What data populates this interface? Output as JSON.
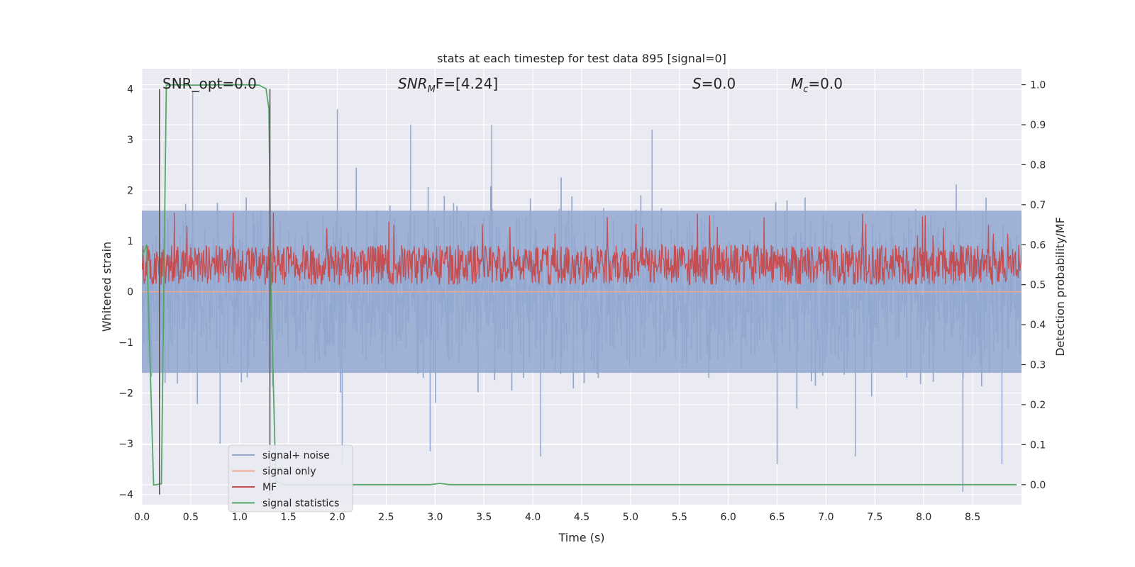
{
  "chart_data": {
    "type": "line",
    "title": "stats at each timestep for test data 895 [signal=0]",
    "xlabel": "Time (s)",
    "ylabel": "Whitened strain",
    "y2label": "Detection probability/MF",
    "xlim": [
      0,
      9.0
    ],
    "ylim": [
      -4.2,
      4.4
    ],
    "y2lim": [
      -0.05,
      1.04
    ],
    "x_ticks": [
      0.0,
      0.5,
      1.0,
      1.5,
      2.0,
      2.5,
      3.0,
      3.5,
      4.0,
      4.5,
      5.0,
      5.5,
      6.0,
      6.5,
      7.0,
      7.5,
      8.0,
      8.5
    ],
    "y_ticks": [
      -4,
      -3,
      -2,
      -1,
      0,
      1,
      2,
      3,
      4
    ],
    "y2_ticks": [
      0.0,
      0.1,
      0.2,
      0.3,
      0.4,
      0.5,
      0.6,
      0.7,
      0.8,
      0.9,
      1.0
    ],
    "grid": true,
    "legend_position": "lower-left",
    "annotations": {
      "snr_opt": "SNR_opt=0.0",
      "snr_mf_label": "SNR",
      "snr_mf_sub": "M",
      "snr_mf_rest": "F=[4.24]",
      "s_label": "S",
      "s_rest": "=0.0",
      "mc_label": "M",
      "mc_sub": "c",
      "mc_rest": "=0.0"
    },
    "vlines": [
      0.18,
      1.31
    ],
    "series": [
      {
        "name": "signal+ noise",
        "axis": "left",
        "color": "#92a8d1",
        "description": "noise envelope: centered at 0, typical amplitude about 2, spikes up to about 4",
        "x_range": [
          0,
          9.0
        ],
        "typical_amplitude": 2.0,
        "spikes": [
          [
            0.52,
            3.95
          ],
          [
            2.0,
            3.6
          ],
          [
            3.58,
            3.3
          ],
          [
            2.75,
            3.3
          ],
          [
            5.22,
            3.2
          ],
          [
            0.8,
            -3.0
          ],
          [
            2.05,
            -3.4
          ],
          [
            4.08,
            -3.25
          ],
          [
            6.5,
            -3.4
          ],
          [
            8.4,
            -3.95
          ],
          [
            2.95,
            -3.15
          ],
          [
            7.3,
            -3.25
          ],
          [
            8.8,
            -3.4
          ]
        ]
      },
      {
        "name": "signal only",
        "axis": "left",
        "color": "#f0a78f",
        "x": [
          0,
          9.0
        ],
        "y": [
          0,
          0
        ]
      },
      {
        "name": "MF",
        "axis": "right",
        "color": "#c44e52",
        "description": "matched-filter output: band from 0.50 to about 0.62 on the right axis, occasional peaks to 0.62-0.69",
        "base": 0.55,
        "band": 0.1
      },
      {
        "name": "signal statistics",
        "axis": "right",
        "color": "#55a868",
        "x": [
          0.0,
          0.05,
          0.12,
          0.2,
          0.25,
          0.35,
          0.5,
          1.0,
          1.2,
          1.27,
          1.3,
          1.32,
          1.37,
          1.45,
          2.95,
          3.05,
          3.15,
          8.95
        ],
        "y": [
          0.57,
          0.6,
          -0.001,
          0.002,
          0.999,
          1.0,
          0.999,
          1.0,
          0.999,
          0.99,
          0.94,
          0.5,
          0.01,
          0.0,
          0.0,
          0.003,
          0.0,
          0.0
        ]
      }
    ]
  }
}
